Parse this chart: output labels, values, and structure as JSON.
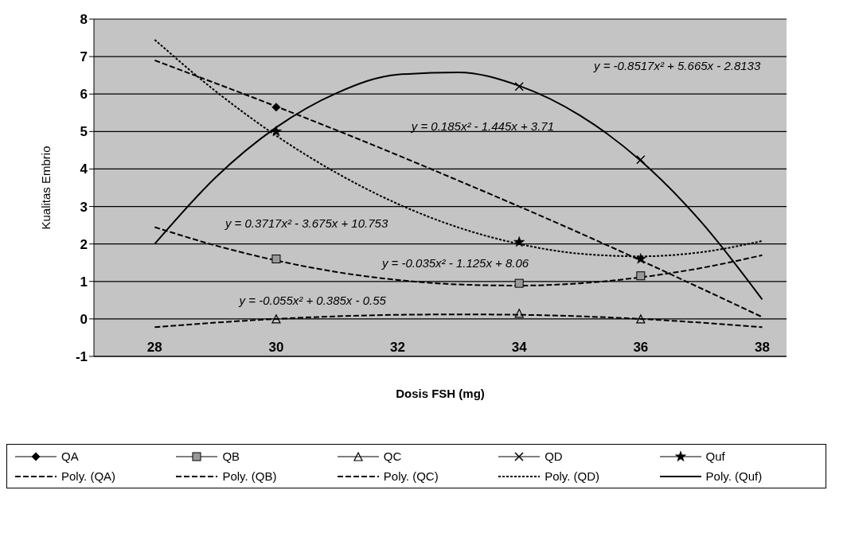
{
  "chart_data": {
    "type": "scatter",
    "xlabel": "Dosis FSH (mg)",
    "ylabel": "Kualitas Embrio",
    "xlim": [
      27,
      38.4
    ],
    "xticks": [
      28,
      30,
      32,
      34,
      36,
      38
    ],
    "ylim": [
      -1,
      8
    ],
    "yticks": [
      -1,
      0,
      1,
      2,
      3,
      4,
      5,
      6,
      7,
      8
    ],
    "grid": "y",
    "legend": "bottom",
    "series": [
      {
        "name": "QA",
        "marker": "diamond",
        "color": "#000000",
        "x": [
          30
        ],
        "values": [
          5.65
        ]
      },
      {
        "name": "QB",
        "marker": "square",
        "color": "#000000",
        "x": [
          30,
          34,
          36
        ],
        "values": [
          1.6,
          0.95,
          1.15
        ]
      },
      {
        "name": "QC",
        "marker": "triangle",
        "color": "#000000",
        "x": [
          30,
          34,
          36
        ],
        "values": [
          0.0,
          0.15,
          0.0
        ]
      },
      {
        "name": "QD",
        "marker": "cross",
        "color": "#000000",
        "x": [
          34,
          36
        ],
        "values": [
          6.2,
          4.25
        ]
      },
      {
        "name": "Quf",
        "marker": "star",
        "color": "#000000",
        "x": [
          30,
          34,
          36
        ],
        "values": [
          5.0,
          2.05,
          1.6
        ]
      },
      {
        "name": "Poly. (QA)",
        "type": "line",
        "marker": "none",
        "line_style": "dashed",
        "color": "#000000",
        "x": [
          28,
          29,
          30,
          31,
          32,
          33,
          34,
          35,
          36,
          37,
          38
        ],
        "values": [
          6.9,
          6.29,
          5.67,
          5.03,
          4.37,
          3.69,
          3.0,
          2.29,
          1.56,
          0.81,
          0.05
        ]
      },
      {
        "name": "Poly. (QB)",
        "type": "line",
        "marker": "none",
        "line_style": "dashed",
        "color": "#000000",
        "x": [
          28,
          29,
          30,
          31,
          32,
          33,
          34,
          35,
          36,
          37,
          38
        ],
        "values": [
          2.45,
          1.96,
          1.56,
          1.25,
          1.04,
          0.92,
          0.89,
          0.95,
          1.11,
          1.36,
          1.7
        ]
      },
      {
        "name": "Poly. (QC)",
        "type": "line",
        "marker": "none",
        "line_style": "dashed",
        "color": "#000000",
        "x": [
          28,
          29,
          30,
          31,
          32,
          33,
          34,
          35,
          36,
          37,
          38
        ],
        "values": [
          -0.22,
          -0.1,
          0.0,
          0.07,
          0.11,
          0.12,
          0.11,
          0.07,
          0.0,
          -0.1,
          -0.22
        ]
      },
      {
        "name": "Poly. (QD)",
        "type": "line",
        "marker": "none",
        "line_style": "dotted",
        "color": "#000000",
        "x": [
          28,
          29,
          30,
          31,
          32,
          33,
          34,
          35,
          36,
          37,
          38
        ],
        "values": [
          7.45,
          6.08,
          4.89,
          3.89,
          3.07,
          2.44,
          2.0,
          1.74,
          1.67,
          1.78,
          2.08
        ]
      },
      {
        "name": "Poly. (Quf)",
        "type": "line",
        "marker": "none",
        "line_style": "solid",
        "color": "#000000",
        "x": [
          28,
          29,
          30,
          31,
          32,
          33,
          34,
          35,
          36,
          37,
          38
        ],
        "values": [
          2.0,
          3.77,
          5.11,
          6.03,
          6.52,
          6.58,
          6.22,
          5.43,
          4.22,
          2.58,
          0.52
        ]
      }
    ],
    "annotations": [
      "y = -0.8517x² + 5.665x - 2.8133",
      "y = 0.185x² - 1.445x + 3.71",
      "y = 0.3717x² - 3.675x + 10.753",
      "y = -0.035x² - 1.125x + 8.06",
      "y = -0.055x² + 0.385x - 0.55"
    ]
  }
}
